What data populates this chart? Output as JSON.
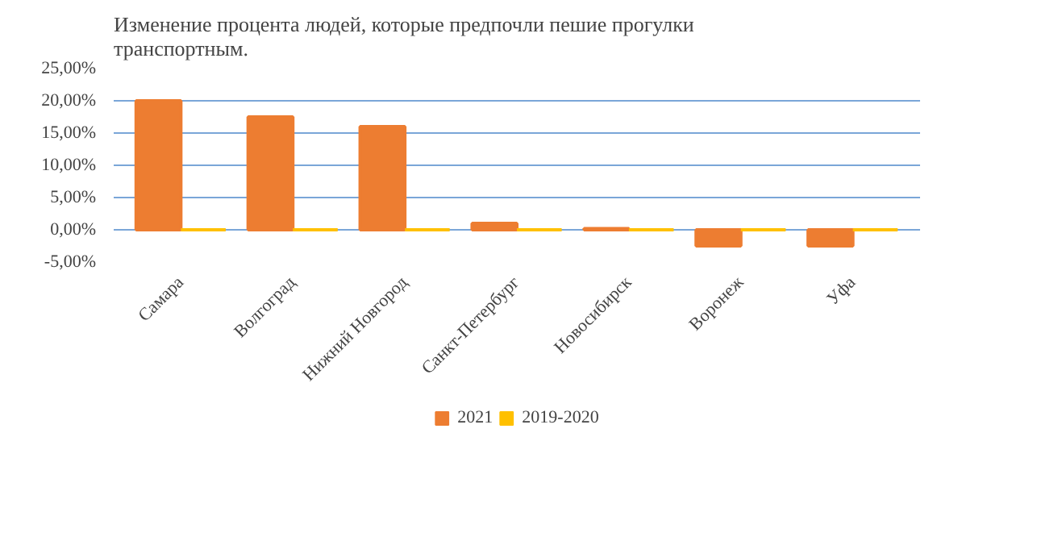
{
  "chart_data": {
    "type": "bar",
    "title": "Изменение процента людей, которые предпочли пешие прогулки транспортным.",
    "categories": [
      "Самара",
      "Волгоград",
      "Нижний Новгород",
      "Санкт-Петербург",
      "Новосибирск",
      "Воронеж",
      "Уфа"
    ],
    "series": [
      {
        "name": "2021",
        "color": "#ed7d31",
        "values": [
          20,
          17.5,
          16,
          1,
          0.2,
          -2.5,
          -2.5
        ]
      },
      {
        "name": "2019-2020",
        "color": "#ffc000",
        "values": [
          0,
          0,
          0,
          0,
          0,
          0,
          0
        ]
      }
    ],
    "ylim": [
      -5,
      25
    ],
    "yticks": [
      {
        "value": -5,
        "label": "-5,00%"
      },
      {
        "value": 0,
        "label": "0,00%"
      },
      {
        "value": 5,
        "label": "5,00%"
      },
      {
        "value": 10,
        "label": "10,00%"
      },
      {
        "value": 15,
        "label": "15,00%"
      },
      {
        "value": 20,
        "label": "20,00%"
      },
      {
        "value": 25,
        "label": "25,00%"
      }
    ],
    "grid": "y",
    "legend": "bottom"
  }
}
